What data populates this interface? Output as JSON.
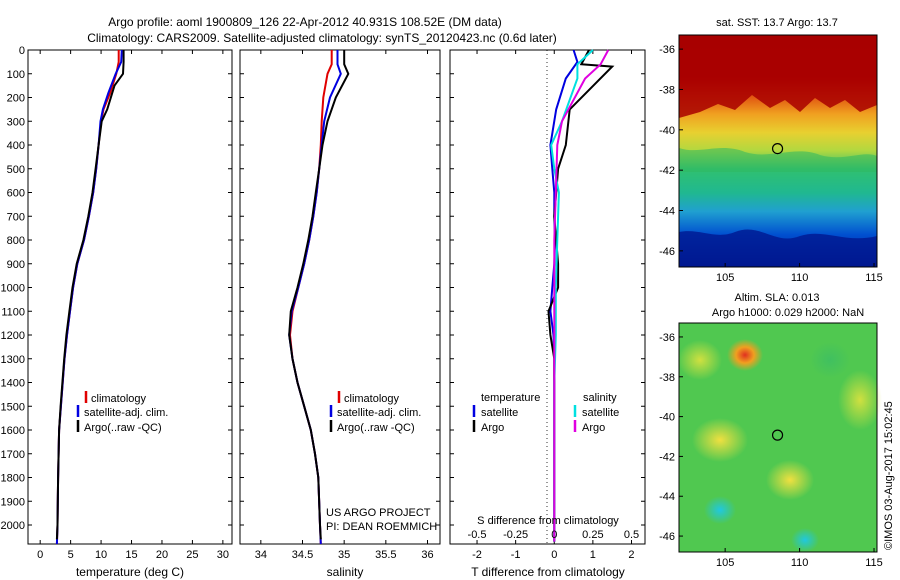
{
  "title_line1": "Argo profile: aoml 1900809_126 22-Apr-2012 40.931S 108.52E (DM data)",
  "title_line2": "Climatology: CARS2009. Satellite-adjusted climatology: synTS_20120423.nc (0.6d later)",
  "colors": {
    "climatology": "#e00000",
    "satellite": "#0000e0",
    "argo": "#000000",
    "sal_satellite": "#00e0e0",
    "sal_argo": "#e000e0"
  },
  "project_line1": "US ARGO PROJECT",
  "project_line2": "PI: DEAN ROEMMICH",
  "sst_title": "sat. SST: 13.7 Argo: 13.7",
  "sla_title1": "Altim. SLA: 0.013",
  "sla_title2": "Argo h1000: 0.029 h2000: NaN",
  "imos_stamp": "©IMOS 03-Aug-2017 15:02:45",
  "chart_data": [
    {
      "type": "line",
      "id": "temperature",
      "xlabel": "temperature (deg C)",
      "ylabel": "",
      "xlim": [
        -2,
        31.5
      ],
      "ylim": [
        2080,
        0
      ],
      "y_reversed": true,
      "xticks": [
        0,
        5,
        10,
        15,
        20,
        25,
        30
      ],
      "yticks": [
        0,
        100,
        200,
        300,
        400,
        500,
        600,
        700,
        800,
        900,
        1000,
        1100,
        1200,
        1300,
        1400,
        1500,
        1600,
        1700,
        1800,
        1900,
        2000
      ],
      "legend": [
        "climatology",
        "satellite-adj. clim.",
        "Argo(..raw -QC)"
      ],
      "series": [
        {
          "name": "climatology",
          "color": "#e00000",
          "x": [
            12.9,
            12.9,
            12.5,
            11.5,
            10.4,
            10.0,
            9.6,
            9.2,
            8.7,
            8.0,
            7.2,
            6.1,
            5.4,
            4.9,
            4.4,
            4.0,
            3.7,
            3.4,
            3.1,
            2.95,
            2.85,
            2.75
          ],
          "y": [
            0,
            50,
            100,
            180,
            250,
            300,
            400,
            500,
            600,
            700,
            800,
            900,
            1000,
            1100,
            1200,
            1300,
            1400,
            1500,
            1600,
            1800,
            2000,
            2080
          ]
        },
        {
          "name": "satellite-adj. clim.",
          "color": "#0000e0",
          "x": [
            13.4,
            13.3,
            12.4,
            11.2,
            10.3,
            9.9,
            9.6,
            9.2,
            8.7,
            8.0,
            7.2,
            6.1,
            5.4,
            4.9,
            4.4,
            4.0,
            3.7,
            3.4,
            3.1,
            2.95,
            2.85,
            2.75
          ],
          "y": [
            0,
            50,
            100,
            180,
            250,
            300,
            400,
            500,
            600,
            700,
            800,
            900,
            1000,
            1100,
            1200,
            1300,
            1400,
            1500,
            1600,
            1800,
            2000,
            2080
          ]
        },
        {
          "name": "Argo(..raw -QC)",
          "color": "#000000",
          "x": [
            13.7,
            13.7,
            13.6,
            12.2,
            11.0,
            10.1,
            9.6,
            9.1,
            8.6,
            7.9,
            7.1,
            6.0,
            5.3,
            4.8,
            4.3,
            3.95,
            3.65,
            3.35,
            3.1,
            2.95,
            2.85,
            2.75
          ],
          "y": [
            0,
            50,
            100,
            150,
            250,
            300,
            400,
            500,
            600,
            700,
            800,
            900,
            1000,
            1100,
            1200,
            1300,
            1400,
            1500,
            1600,
            1800,
            2000,
            2060
          ]
        }
      ]
    },
    {
      "type": "line",
      "id": "salinity",
      "xlabel": "salinity",
      "xlim": [
        33.75,
        36.15
      ],
      "ylim": [
        2080,
        0
      ],
      "xticks": [
        34,
        34.5,
        35,
        35.5,
        36
      ],
      "xticklabels": [
        "34",
        "34.5",
        "35",
        "35.5",
        "36"
      ],
      "legend": [
        "climatology",
        "satellite-adj. clim.",
        "Argo(..raw -QC)"
      ],
      "series": [
        {
          "name": "climatology",
          "color": "#e00000",
          "x": [
            34.85,
            34.85,
            34.8,
            34.75,
            34.73,
            34.72,
            34.7,
            34.67,
            34.63,
            34.58,
            34.52,
            34.45,
            34.38,
            34.35,
            34.38,
            34.44,
            34.52,
            34.6,
            34.65,
            34.69,
            34.71,
            34.72
          ],
          "y": [
            0,
            60,
            100,
            200,
            300,
            400,
            500,
            600,
            700,
            800,
            900,
            1000,
            1100,
            1200,
            1300,
            1400,
            1500,
            1600,
            1700,
            1800,
            2000,
            2080
          ]
        },
        {
          "name": "satellite-adj. clim.",
          "color": "#0000e0",
          "x": [
            34.92,
            34.92,
            34.96,
            34.83,
            34.76,
            34.73,
            34.7,
            34.67,
            34.63,
            34.58,
            34.52,
            34.45,
            34.37,
            34.34,
            34.38,
            34.44,
            34.52,
            34.6,
            34.65,
            34.69,
            34.71,
            34.72
          ],
          "y": [
            0,
            60,
            100,
            200,
            300,
            400,
            500,
            600,
            700,
            800,
            900,
            1000,
            1100,
            1200,
            1300,
            1400,
            1500,
            1600,
            1700,
            1800,
            2000,
            2080
          ]
        },
        {
          "name": "Argo(..raw -QC)",
          "color": "#000000",
          "x": [
            35.0,
            35.0,
            35.05,
            34.9,
            34.8,
            34.74,
            34.7,
            34.66,
            34.62,
            34.57,
            34.51,
            34.44,
            34.36,
            34.34,
            34.38,
            34.44,
            34.52,
            34.6,
            34.65,
            34.69,
            34.71,
            34.72
          ],
          "y": [
            0,
            60,
            100,
            200,
            300,
            400,
            500,
            600,
            700,
            800,
            900,
            1000,
            1100,
            1200,
            1300,
            1400,
            1500,
            1600,
            1700,
            1800,
            2000,
            2060
          ]
        }
      ]
    },
    {
      "type": "line",
      "id": "difference",
      "xlabel": "T difference from climatology",
      "xlabel_top": "S difference from climatology",
      "xlim": [
        -2.7,
        2.35
      ],
      "ylim": [
        2080,
        0
      ],
      "xticks": [
        -2,
        -1,
        0,
        1,
        2
      ],
      "sal_ticks": [
        -0.5,
        -0.25,
        0,
        0.25,
        0.5
      ],
      "sal_ticklabels": [
        "-0.5",
        "-0.25",
        "0",
        "0.25",
        "0.5"
      ],
      "legend_temperature_title": "temperature",
      "legend_salinity_title": "salinity",
      "legend_temperature": [
        "satellite",
        "Argo"
      ],
      "legend_salinity": [
        "satellite",
        "Argo"
      ],
      "series": [
        {
          "name": "T satellite",
          "color": "#0000e0",
          "x": [
            0.5,
            0.6,
            0.3,
            0.05,
            -0.1,
            -0.05,
            0,
            0,
            0.02,
            0,
            -0.05,
            -0.1,
            -0.02,
            0,
            0,
            0
          ],
          "y": [
            0,
            50,
            120,
            250,
            400,
            500,
            600,
            700,
            800,
            900,
            1000,
            1100,
            1200,
            1300,
            1600,
            2070
          ]
        },
        {
          "name": "T Argo",
          "color": "#000000",
          "x": [
            0.9,
            0.7,
            1.5,
            0.4,
            0.3,
            0.1,
            0.05,
            0,
            0.05,
            0.1,
            0.1,
            -0.15,
            -0.1,
            0,
            0,
            0
          ],
          "y": [
            0,
            60,
            70,
            250,
            400,
            500,
            600,
            700,
            800,
            900,
            1000,
            1100,
            1200,
            1300,
            1600,
            2070
          ]
        },
        {
          "name": "S satellite",
          "color": "#00e0e0",
          "x": [
            0.25,
            0.15,
            0.15,
            0.05,
            -0.02,
            0,
            0.03,
            0.02,
            0.01,
            0.01,
            0,
            0,
            0
          ],
          "y": [
            0,
            60,
            120,
            300,
            400,
            500,
            600,
            800,
            1000,
            1200,
            1400,
            1600,
            2070
          ]
        },
        {
          "name": "S Argo",
          "color": "#e000e0",
          "x": [
            0.35,
            0.3,
            0.2,
            0.05,
            0.02,
            0.01,
            0,
            0,
            0,
            0
          ],
          "y": [
            0,
            60,
            120,
            300,
            400,
            600,
            800,
            1000,
            1400,
            2070
          ]
        }
      ]
    },
    {
      "type": "heatmap",
      "id": "sst_map",
      "xticks": [
        105,
        110,
        115
      ],
      "yticks": [
        -36,
        -38,
        -40,
        -42,
        -44,
        -46
      ],
      "xlim": [
        101.9,
        115.2
      ],
      "ylim": [
        -46.8,
        -35.3
      ],
      "float_position": {
        "lon": 108.52,
        "lat": -40.931
      }
    },
    {
      "type": "heatmap",
      "id": "sla_map",
      "xticks": [
        105,
        110,
        115
      ],
      "yticks": [
        -36,
        -38,
        -40,
        -42,
        -44,
        -46
      ],
      "xlim": [
        101.9,
        115.2
      ],
      "ylim": [
        -46.8,
        -35.3
      ],
      "float_position": {
        "lon": 108.52,
        "lat": -40.931
      }
    }
  ]
}
